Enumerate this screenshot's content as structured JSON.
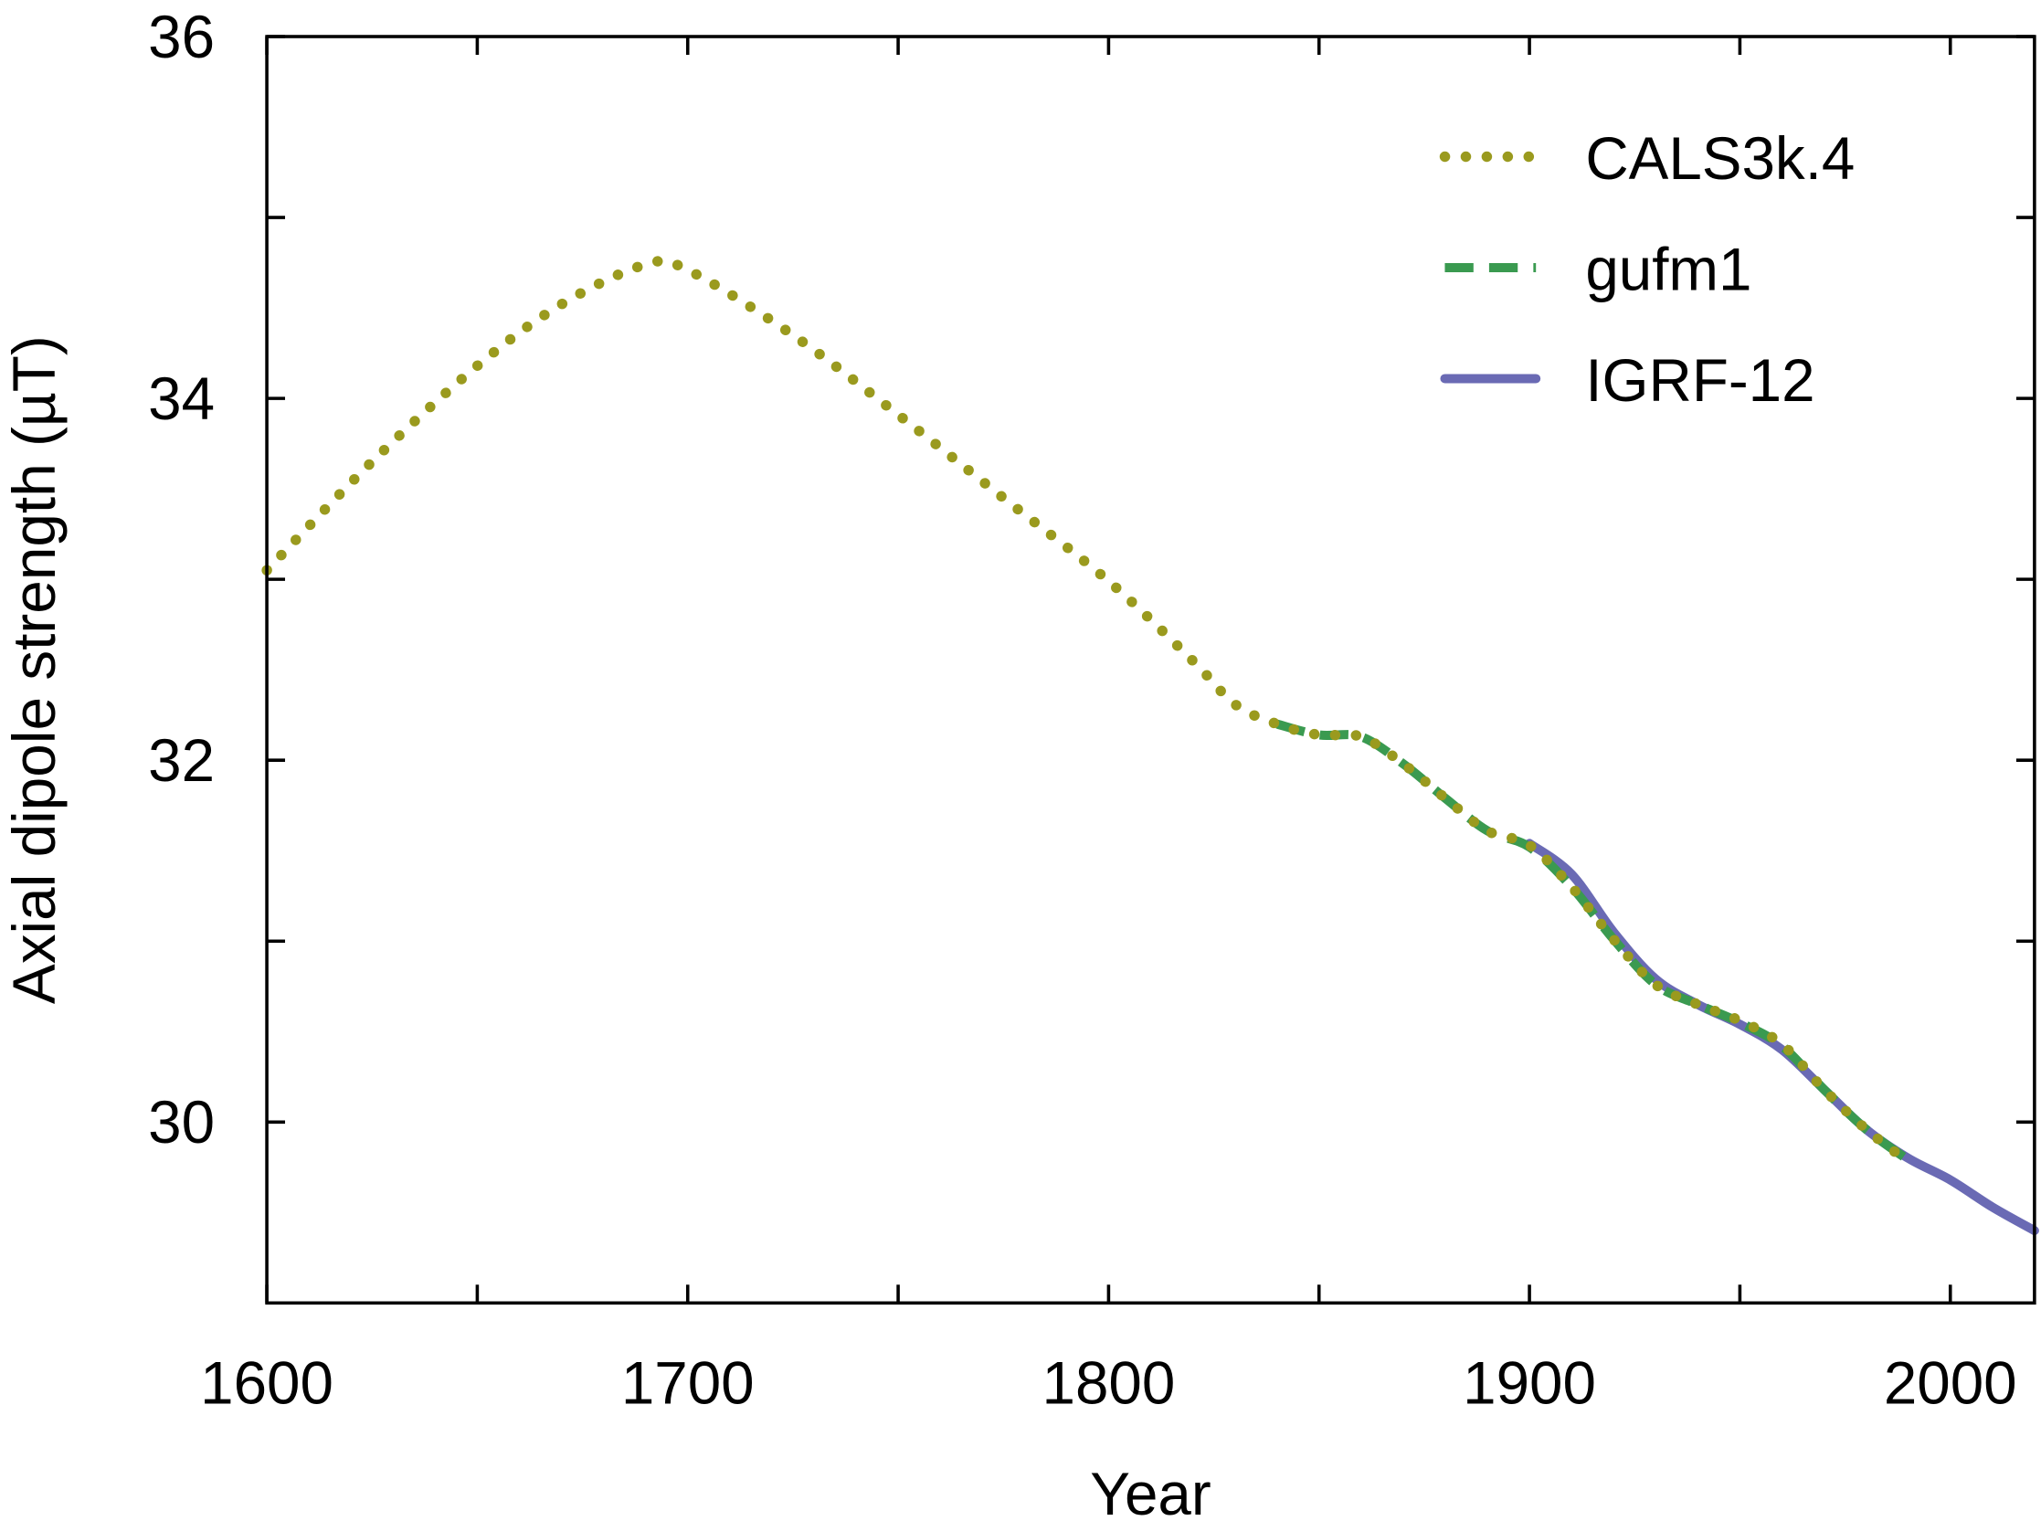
{
  "chart_data": {
    "type": "line",
    "xlabel": "Year",
    "ylabel": "Axial dipole strength (µT)",
    "xlim": [
      1600,
      2020
    ],
    "ylim": [
      29,
      36
    ],
    "xticks": [
      1600,
      1700,
      1800,
      1900,
      2000
    ],
    "yticks": [
      30,
      32,
      34,
      36
    ],
    "legend_position": "top-right",
    "grid": false,
    "series": [
      {
        "name": "CALS3k.4",
        "style": "dotted",
        "color": "#9a9a1e",
        "x": [
          1600,
          1625,
          1650,
          1670,
          1690,
          1700,
          1725,
          1750,
          1775,
          1800,
          1820,
          1830,
          1840,
          1850,
          1860,
          1870,
          1880,
          1890,
          1900,
          1910,
          1920,
          1930,
          1940,
          1950,
          1960,
          1970,
          1980,
          1990
        ],
        "y": [
          33.05,
          33.65,
          34.18,
          34.52,
          34.74,
          34.71,
          34.35,
          33.91,
          33.45,
          32.99,
          32.55,
          32.31,
          32.2,
          32.14,
          32.13,
          31.98,
          31.79,
          31.61,
          31.53,
          31.3,
          31.01,
          30.76,
          30.65,
          30.56,
          30.43,
          30.18,
          29.96,
          29.78
        ]
      },
      {
        "name": "gufm1",
        "style": "dashed",
        "color": "#3a9a50",
        "x": [
          1840,
          1850,
          1860,
          1870,
          1880,
          1890,
          1900,
          1910,
          1920,
          1930,
          1940,
          1950,
          1960,
          1970,
          1980,
          1990
        ],
        "y": [
          32.2,
          32.14,
          32.13,
          31.98,
          31.79,
          31.61,
          31.52,
          31.3,
          31.01,
          30.76,
          30.65,
          30.55,
          30.42,
          30.18,
          29.96,
          29.79
        ]
      },
      {
        "name": "IGRF-12",
        "style": "solid",
        "color": "#6a6ab4",
        "x": [
          1900,
          1910,
          1920,
          1930,
          1940,
          1950,
          1960,
          1970,
          1980,
          1990,
          2000,
          2010,
          2020
        ],
        "y": [
          31.54,
          31.37,
          31.05,
          30.79,
          30.65,
          30.54,
          30.4,
          30.18,
          29.96,
          29.8,
          29.68,
          29.53,
          29.4
        ]
      }
    ]
  }
}
